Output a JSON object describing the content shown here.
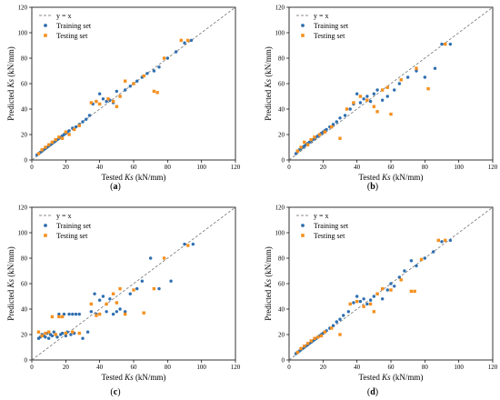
{
  "colors": {
    "training": "#2f6fb0",
    "testing": "#f5901e",
    "diag": "#666666"
  },
  "chart_data": [
    {
      "panel": "a",
      "type": "scatter",
      "xlabel": "Tested Ks (kN/mm)",
      "ylabel": "Predicted Ks (kN/mm)",
      "xlabel_parts": [
        "Tested ",
        "Ks",
        " (kN/mm)"
      ],
      "ylabel_parts": [
        "Predicted ",
        "Ks",
        " (kN/mm)"
      ],
      "xlim": [
        0,
        120
      ],
      "ylim": [
        0,
        120
      ],
      "xticks": [
        0,
        20,
        40,
        60,
        80,
        100,
        120
      ],
      "yticks": [
        0,
        20,
        40,
        60,
        80,
        100,
        120
      ],
      "legend": [
        "y = x",
        "Training set",
        "Testing set"
      ],
      "legend_position": "top-left",
      "series": [
        {
          "name": "Training set",
          "marker": "circle",
          "x": [
            3,
            5,
            6,
            7,
            8,
            9,
            10,
            11,
            12,
            13,
            14,
            15,
            16,
            17,
            18,
            19,
            20,
            21,
            22,
            24,
            26,
            28,
            30,
            32,
            34,
            36,
            38,
            40,
            42,
            44,
            46,
            48,
            50,
            52,
            55,
            58,
            60,
            62,
            65,
            68,
            72,
            75,
            80,
            85,
            90,
            94
          ],
          "y": [
            4,
            6,
            7,
            8,
            9,
            10,
            11,
            12,
            13,
            14,
            15,
            16,
            17,
            18,
            19,
            20,
            21,
            22,
            23,
            25,
            26,
            28,
            30,
            32,
            35,
            44,
            46,
            52,
            48,
            46,
            47,
            45,
            54,
            50,
            55,
            58,
            60,
            62,
            65,
            68,
            70,
            73,
            80,
            85,
            92,
            94
          ]
        },
        {
          "name": "Testing set",
          "marker": "square",
          "x": [
            4,
            6,
            8,
            10,
            12,
            14,
            16,
            18,
            20,
            22,
            25,
            28,
            35,
            38,
            40,
            45,
            48,
            50,
            52,
            55,
            60,
            66,
            72,
            74,
            78,
            88,
            92
          ],
          "y": [
            5,
            8,
            10,
            12,
            14,
            16,
            18,
            17,
            22,
            20,
            24,
            27,
            45,
            46,
            44,
            48,
            46,
            42,
            50,
            62,
            60,
            66,
            54,
            53,
            80,
            94,
            94
          ]
        }
      ]
    },
    {
      "panel": "b",
      "type": "scatter",
      "xlabel": "Tested Ks (kN/mm)",
      "ylabel": "Predicted Ks (kN/mm)",
      "xlabel_parts": [
        "Tested ",
        "Ks",
        " (kN/mm)"
      ],
      "ylabel_parts": [
        "Predicted ",
        "Ks",
        " (kN/mm)"
      ],
      "xlim": [
        0,
        120
      ],
      "ylim": [
        0,
        120
      ],
      "xticks": [
        0,
        20,
        40,
        60,
        80,
        100,
        120
      ],
      "yticks": [
        0,
        20,
        40,
        60,
        80,
        100,
        120
      ],
      "legend": [
        "y = x",
        "Training set",
        "Testing set"
      ],
      "legend_position": "top-left",
      "series": [
        {
          "name": "Training set",
          "marker": "circle",
          "x": [
            4,
            5,
            6,
            7,
            8,
            9,
            10,
            11,
            12,
            13,
            14,
            15,
            16,
            17,
            18,
            19,
            20,
            21,
            22,
            24,
            26,
            28,
            30,
            33,
            36,
            38,
            40,
            42,
            44,
            46,
            48,
            50,
            52,
            55,
            58,
            62,
            65,
            70,
            75,
            80,
            86,
            90,
            95
          ],
          "y": [
            5,
            7,
            8,
            9,
            10,
            11,
            12,
            13,
            14,
            15,
            16,
            17,
            18,
            19,
            20,
            21,
            22,
            23,
            24,
            26,
            28,
            30,
            33,
            35,
            40,
            44,
            52,
            45,
            48,
            50,
            46,
            52,
            55,
            47,
            50,
            55,
            60,
            65,
            70,
            65,
            72,
            91,
            91
          ]
        },
        {
          "name": "Testing set",
          "marker": "square",
          "x": [
            5,
            7,
            9,
            11,
            13,
            15,
            18,
            21,
            25,
            30,
            34,
            38,
            42,
            46,
            50,
            52,
            55,
            58,
            60,
            66,
            75,
            82,
            92
          ],
          "y": [
            7,
            10,
            14,
            12,
            16,
            18,
            20,
            22,
            26,
            17,
            40,
            45,
            50,
            47,
            42,
            38,
            55,
            57,
            36,
            63,
            72,
            56,
            91
          ]
        }
      ]
    },
    {
      "panel": "c",
      "type": "scatter",
      "xlabel": "Tested Ks (kN/mm)",
      "ylabel": "Predicted Ks (kN/mm)",
      "xlabel_parts": [
        "Tested ",
        "Ks",
        " (kN/mm)"
      ],
      "ylabel_parts": [
        "Predicted ",
        "Ks",
        " (kN/mm)"
      ],
      "xlim": [
        0,
        120
      ],
      "ylim": [
        0,
        120
      ],
      "xticks": [
        0,
        20,
        40,
        60,
        80,
        100,
        120
      ],
      "yticks": [
        0,
        20,
        40,
        60,
        80,
        100,
        120
      ],
      "legend": [
        "y = x",
        "Training set",
        "Testing set"
      ],
      "legend_position": "top-left",
      "series": [
        {
          "name": "Training set",
          "marker": "circle",
          "x": [
            4,
            5,
            6,
            7,
            8,
            9,
            10,
            11,
            12,
            13,
            14,
            15,
            16,
            17,
            18,
            19,
            20,
            21,
            22,
            23,
            24,
            25,
            26,
            28,
            30,
            33,
            35,
            37,
            38,
            40,
            42,
            44,
            46,
            48,
            50,
            52,
            55,
            58,
            62,
            65,
            70,
            75,
            82,
            90,
            95
          ],
          "y": [
            17,
            18,
            20,
            19,
            18,
            21,
            17,
            20,
            19,
            22,
            20,
            18,
            36,
            20,
            21,
            36,
            19,
            22,
            36,
            20,
            36,
            21,
            36,
            36,
            17,
            22,
            38,
            52,
            36,
            47,
            50,
            38,
            48,
            36,
            38,
            40,
            38,
            52,
            56,
            62,
            80,
            56,
            62,
            91,
            91
          ]
        },
        {
          "name": "Testing set",
          "marker": "square",
          "x": [
            4,
            6,
            8,
            10,
            12,
            14,
            16,
            18,
            20,
            24,
            28,
            35,
            38,
            40,
            44,
            48,
            50,
            52,
            55,
            60,
            66,
            72,
            78,
            92
          ],
          "y": [
            22,
            19,
            21,
            22,
            34,
            20,
            34,
            34,
            21,
            22,
            21,
            44,
            35,
            36,
            44,
            52,
            45,
            56,
            36,
            55,
            37,
            56,
            80,
            90
          ]
        }
      ]
    },
    {
      "panel": "d",
      "type": "scatter",
      "xlabel": "Tested Ks (kN/mm)",
      "ylabel": "Predicted Ks (kN/mm)",
      "xlabel_parts": [
        "Tested ",
        "Ks",
        " (kN/mm)"
      ],
      "ylabel_parts": [
        "Predicted ",
        "Ks",
        " (kN/mm)"
      ],
      "xlim": [
        0,
        120
      ],
      "ylim": [
        0,
        120
      ],
      "xticks": [
        0,
        20,
        40,
        60,
        80,
        100,
        120
      ],
      "yticks": [
        0,
        20,
        40,
        60,
        80,
        100,
        120
      ],
      "legend": [
        "y = x",
        "Training set",
        "Testing set"
      ],
      "legend_position": "top-left",
      "series": [
        {
          "name": "Training set",
          "marker": "circle",
          "x": [
            4,
            5,
            6,
            7,
            8,
            9,
            10,
            11,
            12,
            13,
            14,
            15,
            16,
            17,
            18,
            19,
            20,
            22,
            24,
            26,
            28,
            30,
            32,
            35,
            38,
            40,
            42,
            44,
            46,
            48,
            50,
            52,
            55,
            58,
            60,
            62,
            65,
            68,
            72,
            75,
            80,
            85,
            90,
            95
          ],
          "y": [
            5,
            6,
            7,
            8,
            9,
            10,
            11,
            12,
            13,
            14,
            15,
            16,
            17,
            18,
            19,
            20,
            21,
            23,
            25,
            27,
            30,
            32,
            35,
            38,
            45,
            50,
            46,
            48,
            44,
            47,
            50,
            52,
            48,
            55,
            60,
            58,
            65,
            70,
            78,
            74,
            80,
            85,
            93,
            94
          ]
        },
        {
          "name": "Testing set",
          "marker": "square",
          "x": [
            5,
            7,
            9,
            11,
            13,
            15,
            17,
            19,
            21,
            25,
            30,
            36,
            40,
            44,
            48,
            50,
            52,
            55,
            60,
            66,
            72,
            74,
            78,
            88,
            92
          ],
          "y": [
            6,
            9,
            11,
            13,
            15,
            17,
            18,
            19,
            22,
            25,
            20,
            44,
            46,
            42,
            44,
            38,
            52,
            56,
            55,
            63,
            54,
            54,
            79,
            94,
            94
          ]
        }
      ]
    }
  ],
  "panel_captions": [
    "(a)",
    "(b)",
    "(c)",
    "(d)"
  ]
}
